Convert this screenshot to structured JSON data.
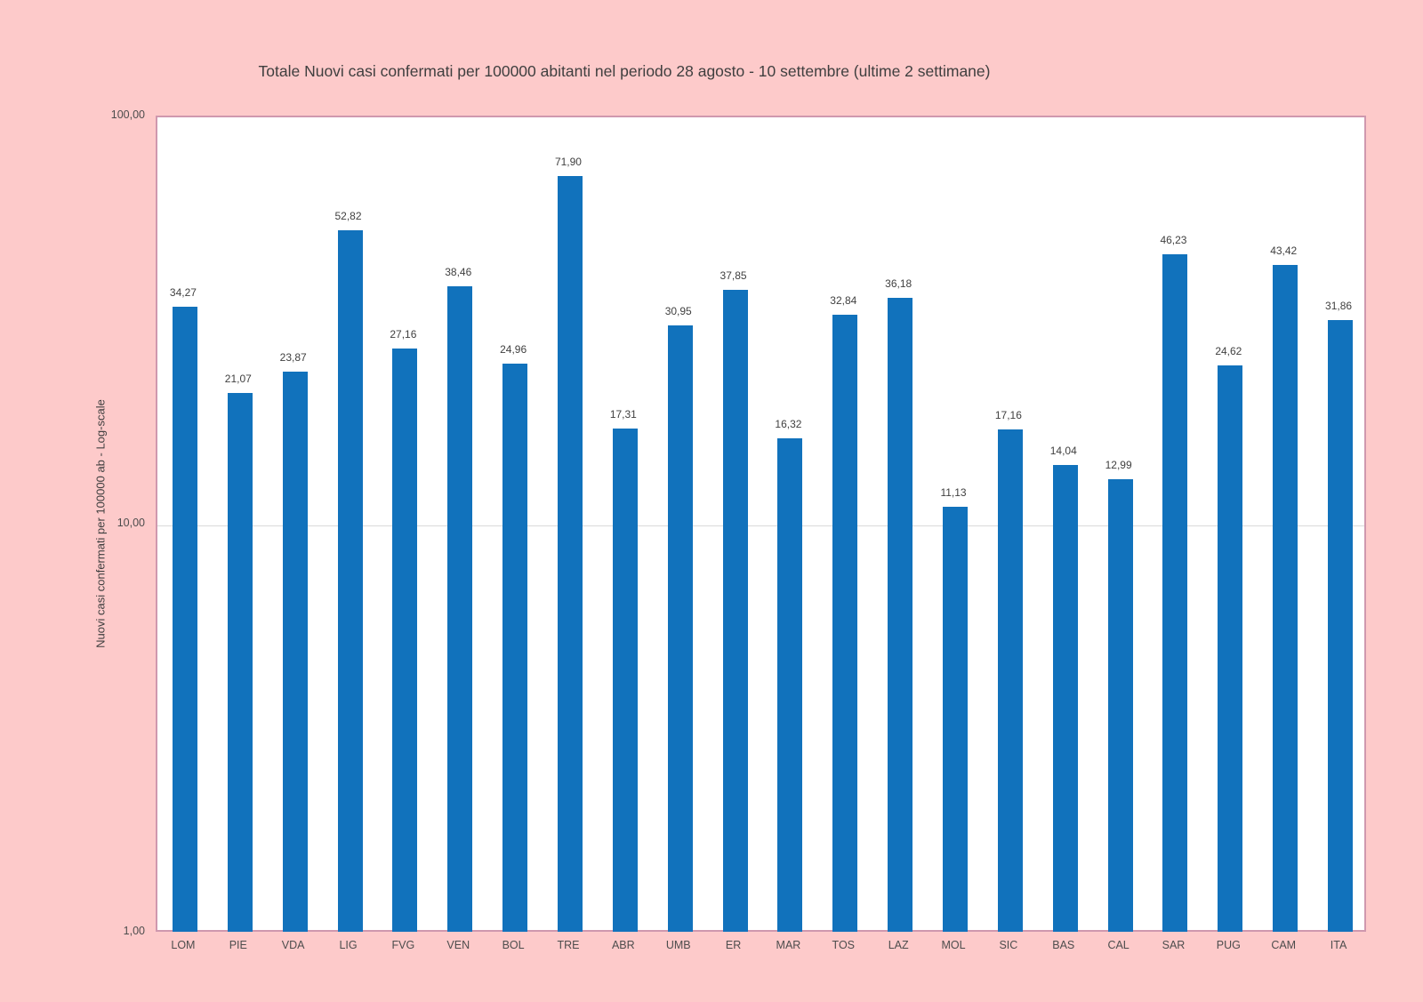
{
  "page": {
    "background_color": "#fdcaca",
    "plot_background_color": "#ffffff",
    "plot_border_color": "#cf98ae",
    "bar_color": "#1172bc",
    "gridline_color": "#dadada",
    "title_color": "#3f3f3f",
    "tick_label_color": "#4d4d4d"
  },
  "chart_data": {
    "type": "bar",
    "title": "Totale Nuovi casi confermati per 100000 abitanti nel periodo 28 agosto - 10 settembre (ultime 2 settimane)",
    "xlabel": "",
    "ylabel": "Nuovi casi confermati per 100000 ab - Log-scale",
    "y_scale": "log",
    "ylim": [
      1,
      100
    ],
    "grid": "horizontal gridlines at decade values only",
    "legend_position": "none",
    "categories": [
      "LOM",
      "PIE",
      "VDA",
      "LIG",
      "FVG",
      "VEN",
      "BOL",
      "TRE",
      "ABR",
      "UMB",
      "ER",
      "MAR",
      "TOS",
      "LAZ",
      "MOL",
      "SIC",
      "BAS",
      "CAL",
      "SAR",
      "PUG",
      "CAM",
      "ITA"
    ],
    "values": [
      34.27,
      21.07,
      23.87,
      52.82,
      27.16,
      38.46,
      24.96,
      71.9,
      17.31,
      30.95,
      37.85,
      16.32,
      32.84,
      36.18,
      11.13,
      17.16,
      14.04,
      12.99,
      46.23,
      24.62,
      43.42,
      31.86
    ],
    "value_labels": [
      "34,27",
      "21,07",
      "23,87",
      "52,82",
      "27,16",
      "38,46",
      "24,96",
      "71,90",
      "17,31",
      "30,95",
      "37,85",
      "16,32",
      "32,84",
      "36,18",
      "11,13",
      "17,16",
      "14,04",
      "12,99",
      "46,23",
      "24,62",
      "43,42",
      "31,86"
    ],
    "yticks": [
      {
        "value": 100,
        "label": "100,00"
      },
      {
        "value": 10,
        "label": "10,00"
      },
      {
        "value": 1,
        "label": "1,00"
      }
    ]
  }
}
